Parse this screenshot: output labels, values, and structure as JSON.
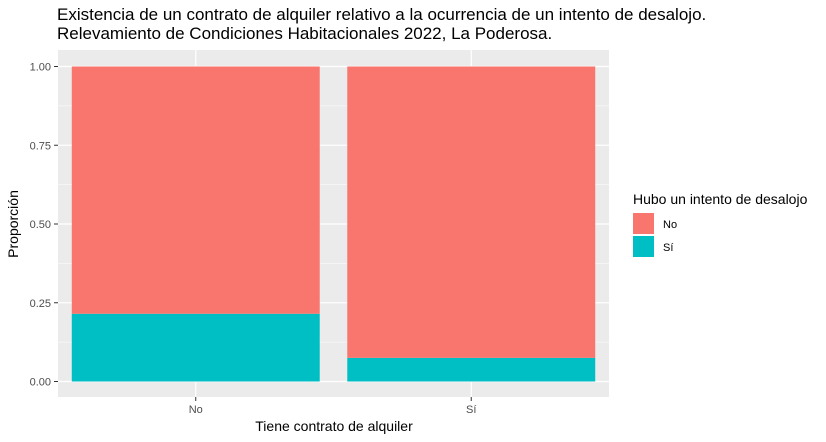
{
  "chart_data": {
    "type": "bar",
    "stacked": true,
    "title": "Existencia de un contrato de alquiler relativo a la ocurrencia de un intento de desalojo.",
    "subtitle": "Relevamiento de Condiciones Habitacionales 2022, La Poderosa.",
    "xlabel": "Tiene contrato de alquiler",
    "ylabel": "Proporción",
    "categories": [
      "No",
      "Sí"
    ],
    "ylim": [
      0,
      1
    ],
    "yticks": [
      "0.00",
      "0.25",
      "0.50",
      "0.75",
      "1.00"
    ],
    "grid": true,
    "legend": {
      "title": "Hubo un intento de desalojo",
      "placement": "right",
      "entries": [
        "No",
        "Sí"
      ]
    },
    "series": [
      {
        "name": "Sí",
        "values": [
          0.215,
          0.075
        ],
        "color": "#00BFC4"
      },
      {
        "name": "No",
        "values": [
          0.785,
          0.925
        ],
        "color": "#F8766D"
      }
    ]
  }
}
